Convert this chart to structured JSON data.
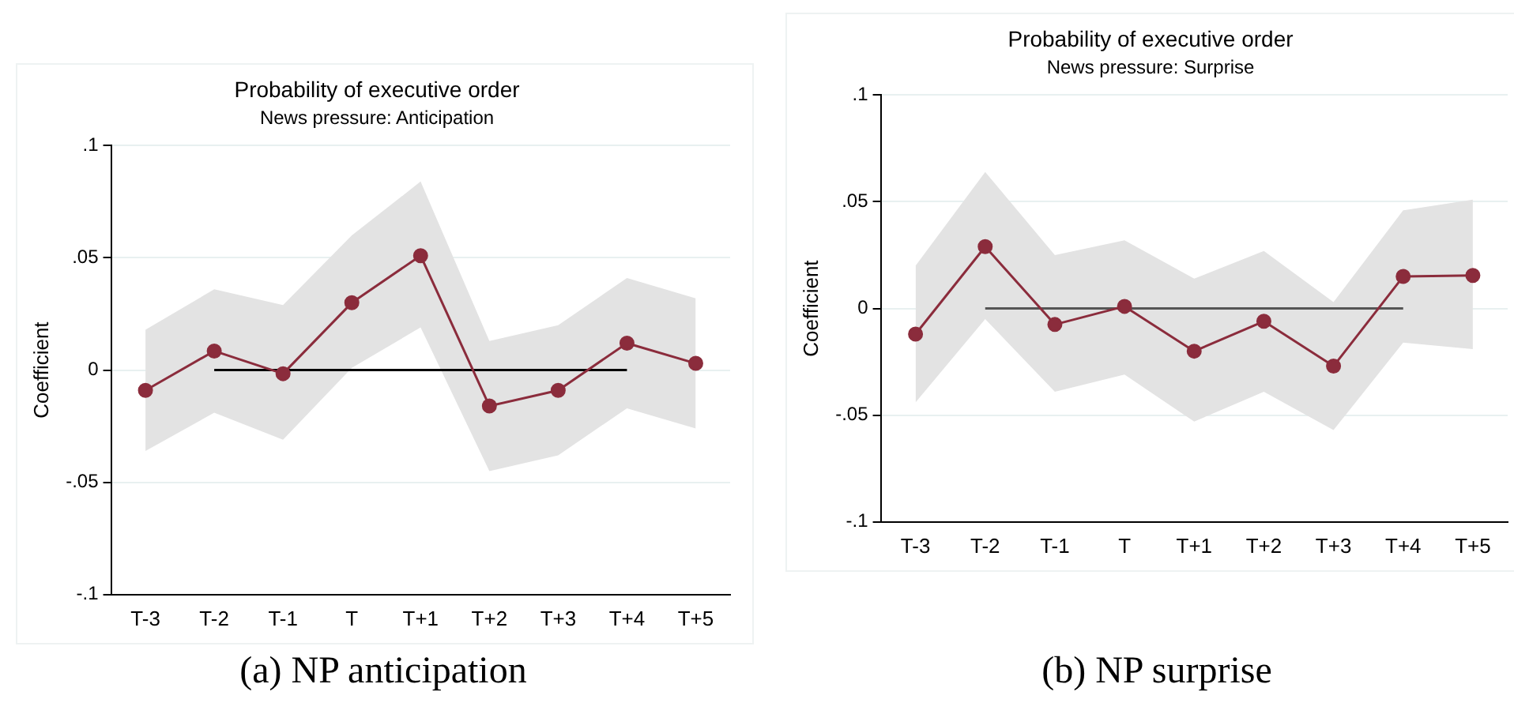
{
  "chart_data": [
    {
      "type": "line",
      "title": "Probability of executive order",
      "subtitle": "News pressure: Anticipation",
      "ylabel": "Coefficient",
      "categories": [
        "T-3",
        "T-2",
        "T-1",
        "T",
        "T+1",
        "T+2",
        "T+3",
        "T+4",
        "T+5"
      ],
      "series": [
        {
          "color": "#8b2c3c",
          "values": [
            -0.009,
            0.0085,
            -0.0016,
            0.03,
            0.051,
            -0.016,
            -0.009,
            0.012,
            0.003
          ],
          "lower": [
            -0.036,
            -0.019,
            -0.031,
            0.001,
            0.019,
            -0.045,
            -0.038,
            -0.017,
            -0.026
          ],
          "upper": [
            0.018,
            0.036,
            0.029,
            0.06,
            0.084,
            0.013,
            0.02,
            0.041,
            0.032
          ]
        },
        {
          "color": "#000000",
          "values": [
            null,
            0,
            0,
            0,
            0,
            0,
            0,
            0,
            null
          ],
          "marker": "none"
        }
      ],
      "ylim": [
        -0.1,
        0.1
      ],
      "yticks": [
        {
          "value": -0.1,
          "label": "-.1"
        },
        {
          "value": -0.05,
          "label": "-.05"
        },
        0,
        {
          "value": 0.05,
          "label": ".05"
        },
        {
          "value": 0.1,
          "label": ".1"
        }
      ],
      "grid": "y",
      "legend": false,
      "marker": "circle",
      "annotations": [
        "(a) NP anticipation"
      ]
    },
    {
      "type": "line",
      "title": "Probability of executive order",
      "subtitle": "News pressure: Surprise",
      "ylabel": "Coefficient",
      "categories": [
        "T-3",
        "T-2",
        "T-1",
        "T",
        "T+1",
        "T+2",
        "T+3",
        "T+4",
        "T+5"
      ],
      "series": [
        {
          "color": "#8b2c3c",
          "values": [
            -0.012,
            0.029,
            -0.0075,
            0.001,
            -0.02,
            -0.006,
            -0.027,
            0.015,
            0.0155
          ],
          "lower": [
            -0.044,
            -0.005,
            -0.039,
            -0.031,
            -0.053,
            -0.039,
            -0.057,
            -0.016,
            -0.019
          ],
          "upper": [
            0.02,
            0.064,
            0.025,
            0.032,
            0.014,
            0.027,
            0.003,
            0.046,
            0.051
          ]
        },
        {
          "color": "#555555",
          "values": [
            null,
            0,
            0,
            0,
            0,
            0,
            0,
            0,
            null
          ],
          "marker": "none"
        }
      ],
      "ylim": [
        -0.1,
        0.1
      ],
      "yticks": [
        {
          "value": -0.1,
          "label": "-.1"
        },
        {
          "value": -0.05,
          "label": "-.05"
        },
        0,
        {
          "value": 0.05,
          "label": ".05"
        },
        {
          "value": 0.1,
          "label": ".1"
        }
      ],
      "grid": "y",
      "legend": false,
      "marker": "circle",
      "annotations": [
        "(b) NP surprise"
      ]
    }
  ]
}
